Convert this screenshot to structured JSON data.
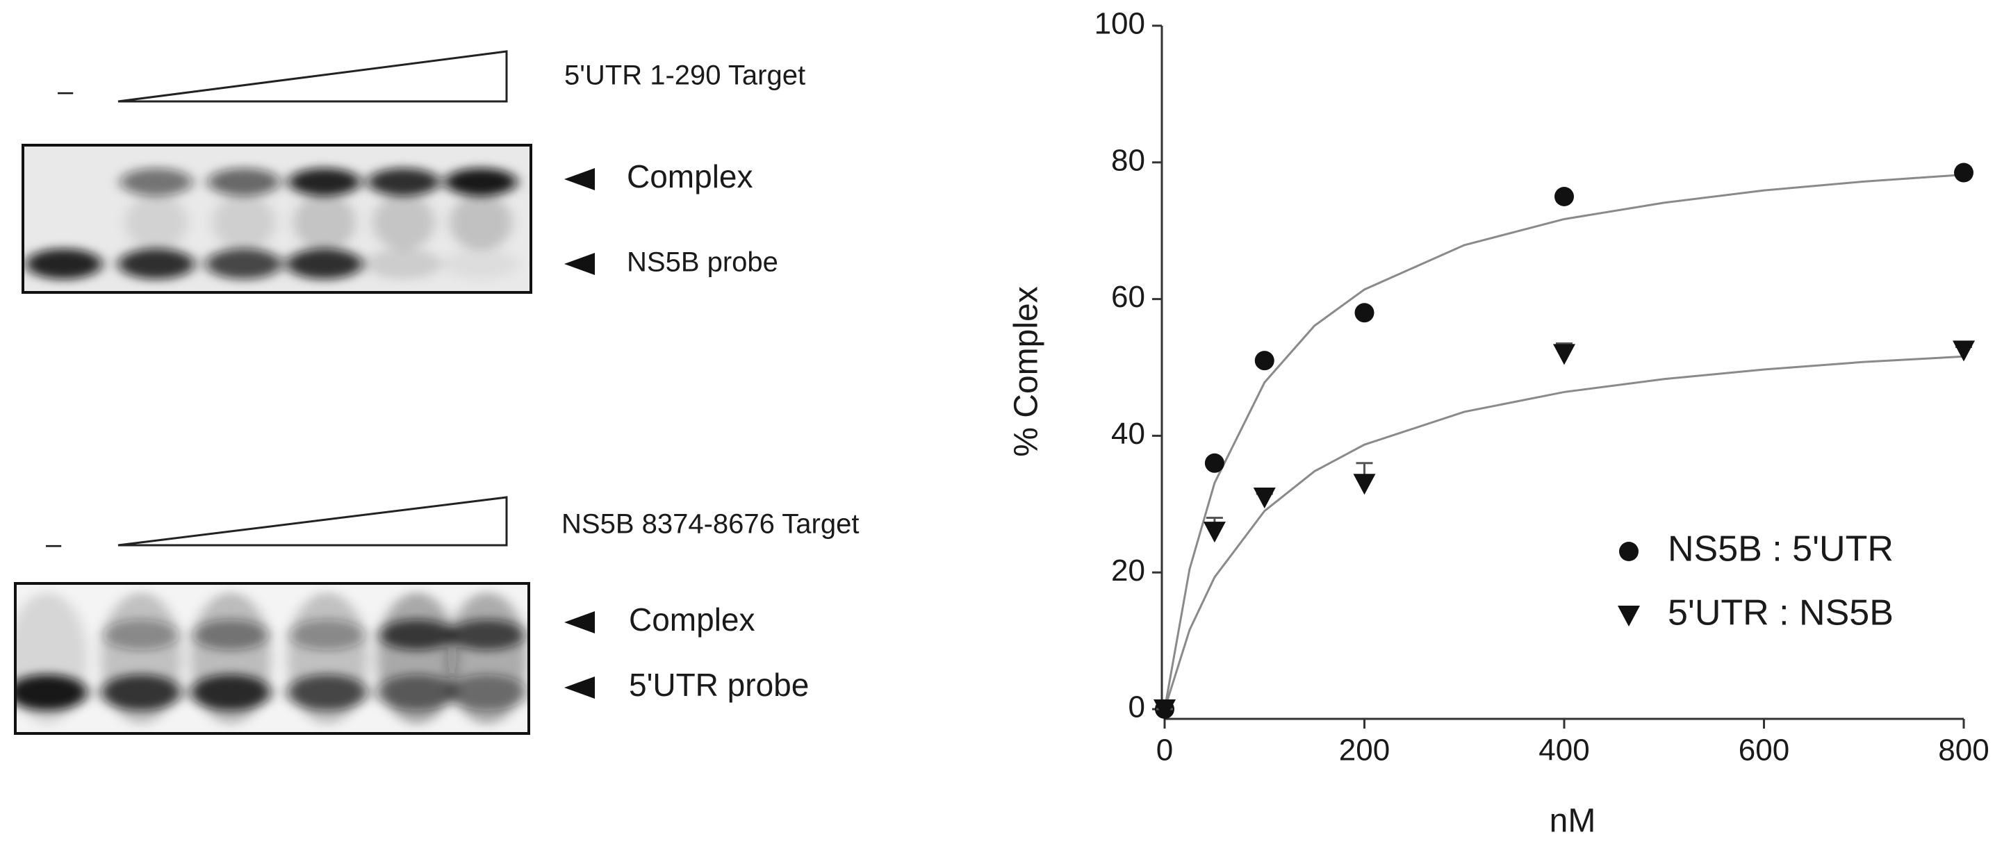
{
  "gels": [
    {
      "target": "5'UTR 1-290 Target",
      "minus": "–",
      "labels": [
        "Complex",
        "NS5B probe"
      ]
    },
    {
      "target": "NS5B 8374-8676 Target",
      "minus": "–",
      "labels": [
        "Complex",
        "5'UTR probe"
      ]
    }
  ],
  "chart_data": {
    "type": "scatter",
    "xlabel": "nM",
    "ylabel": "% Complex",
    "xlim": [
      0,
      800
    ],
    "ylim": [
      0,
      100
    ],
    "xticks": [
      0,
      200,
      400,
      600,
      800
    ],
    "yticks": [
      0,
      20,
      40,
      60,
      80,
      100
    ],
    "grid": false,
    "legend": "lower right",
    "series": [
      {
        "name": "NS5B : 5'UTR",
        "marker": "circle",
        "color": "#111111",
        "x": [
          0,
          50,
          100,
          200,
          400,
          800
        ],
        "values": [
          0,
          36,
          51,
          58,
          75,
          78.5
        ],
        "fit": {
          "color": "#8a8a8a",
          "x": [
            0,
            25,
            50,
            100,
            150,
            200,
            300,
            400,
            500,
            600,
            700,
            800
          ],
          "values": [
            0,
            20.5,
            33.1,
            47.8,
            56.1,
            61.4,
            67.9,
            71.7,
            74.1,
            75.9,
            77.2,
            78.2
          ]
        }
      },
      {
        "name": "5'UTR : NS5B",
        "marker": "triangle-down",
        "color": "#111111",
        "x": [
          0,
          50,
          100,
          200,
          400,
          800
        ],
        "values": [
          0,
          26,
          31,
          33,
          52,
          52.5
        ],
        "errors": [
          0,
          2,
          0.5,
          3,
          1.5,
          0.5
        ],
        "fit": {
          "color": "#8a8a8a",
          "x": [
            0,
            25,
            50,
            100,
            150,
            200,
            300,
            400,
            500,
            600,
            700,
            800
          ],
          "values": [
            0,
            11.6,
            19.3,
            29,
            34.8,
            38.7,
            43.5,
            46.4,
            48.3,
            49.7,
            50.8,
            51.6
          ]
        }
      }
    ]
  }
}
